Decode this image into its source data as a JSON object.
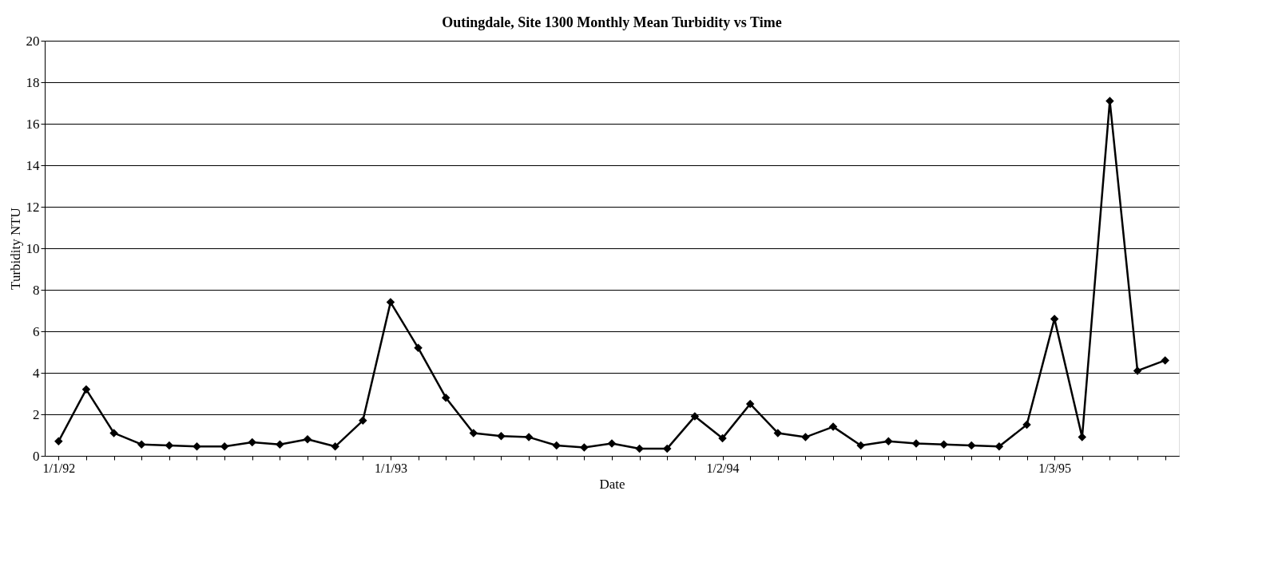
{
  "chart_data": {
    "type": "line",
    "title": "Outingdale, Site 1300 Monthly Mean Turbidity vs Time",
    "xlabel": "Date",
    "ylabel": "Turbidity NTU",
    "categories": [
      "1/1/92",
      null,
      null,
      null,
      null,
      null,
      null,
      null,
      null,
      null,
      null,
      null,
      "1/1/93",
      null,
      null,
      null,
      null,
      null,
      null,
      null,
      null,
      null,
      null,
      null,
      "1/2/94",
      null,
      null,
      null,
      null,
      null,
      null,
      null,
      null,
      null,
      null,
      null,
      "1/3/95",
      null,
      null,
      null,
      null
    ],
    "series": [
      {
        "color": "#000000",
        "values": [
          0.7,
          3.2,
          1.1,
          0.55,
          0.5,
          0.45,
          0.45,
          0.65,
          0.55,
          0.8,
          0.45,
          1.7,
          7.4,
          5.2,
          2.8,
          1.1,
          0.95,
          0.9,
          0.5,
          0.4,
          0.6,
          0.35,
          0.35,
          1.9,
          0.85,
          2.5,
          1.1,
          0.9,
          1.4,
          0.5,
          0.7,
          0.6,
          0.55,
          0.5,
          0.45,
          1.5,
          6.6,
          0.9,
          17.1,
          4.1,
          4.6
        ]
      }
    ],
    "ylim": [
      0,
      20
    ],
    "yticks": [
      0,
      2,
      4,
      6,
      8,
      10,
      12,
      14,
      16,
      18,
      20
    ],
    "grid": "y",
    "marker": "diamond",
    "line_style": "solid"
  }
}
